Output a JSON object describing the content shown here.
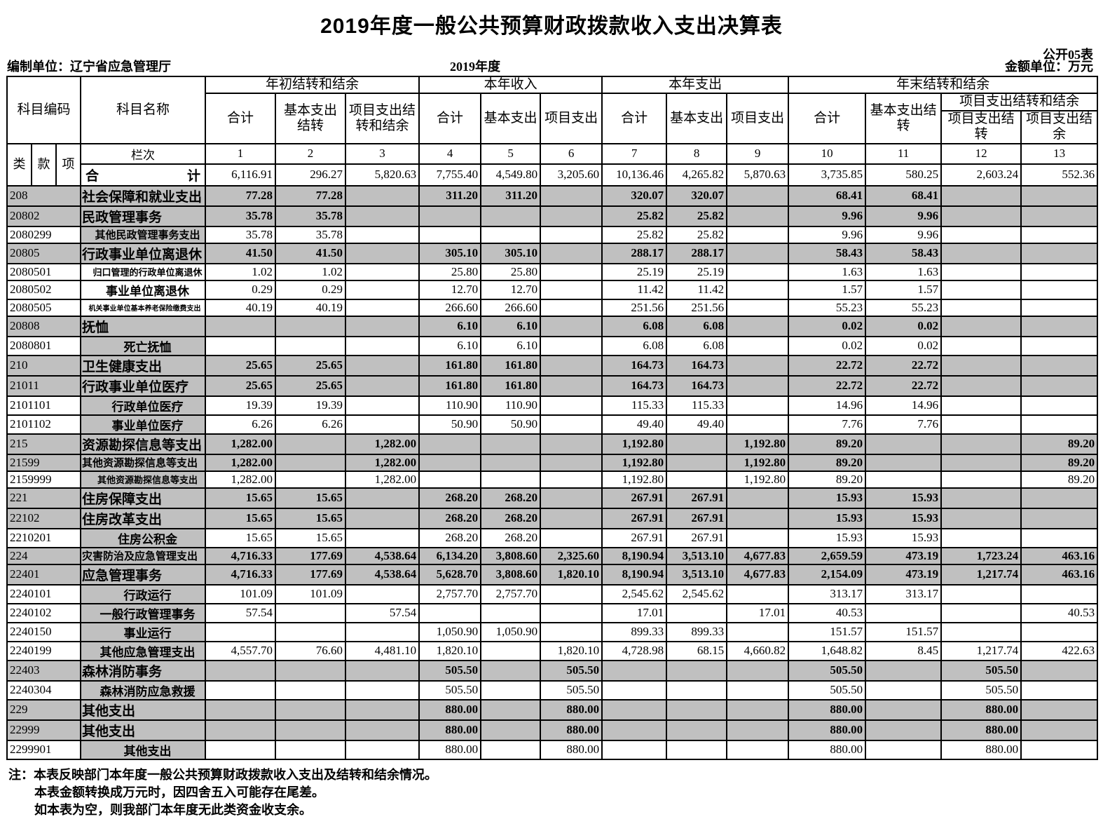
{
  "title": "2019年度一般公共预算财政拨款收入支出决算表",
  "meta": {
    "table_code": "公开05表",
    "prepared_by": "编制单位：辽宁省应急管理厅",
    "period": "2019年度",
    "unit": "金额单位：万元"
  },
  "header": {
    "subject_code": "科目编码",
    "subject_name": "科目名称",
    "groups": [
      {
        "label": "年初结转和结余",
        "cols": [
          "合计",
          "基本支出结转",
          "项目支出结转和结余"
        ]
      },
      {
        "label": "本年收入",
        "cols": [
          "合计",
          "基本支出",
          "项目支出"
        ]
      },
      {
        "label": "本年支出",
        "cols": [
          "合计",
          "基本支出",
          "项目支出"
        ]
      },
      {
        "label": "年末结转和结余",
        "cols": [
          "合计",
          "基本支出结转"
        ],
        "subgroup": {
          "label": "项目支出结转和结余",
          "cols": [
            "项目支出结转",
            "项目支出结余"
          ]
        }
      }
    ],
    "class_label": "类",
    "section_label": "款",
    "item_label": "项",
    "rank_label": "栏次",
    "col_numbers": [
      "1",
      "2",
      "3",
      "4",
      "5",
      "6",
      "7",
      "8",
      "9",
      "10",
      "11",
      "12",
      "13"
    ]
  },
  "total_row": {
    "name_parts": [
      "合",
      "计"
    ],
    "values": [
      "6,116.91",
      "296.27",
      "5,820.63",
      "7,755.40",
      "4,549.80",
      "3,205.60",
      "10,136.46",
      "4,265.82",
      "5,870.63",
      "3,735.85",
      "580.25",
      "2,603.24",
      "552.36"
    ]
  },
  "rows": [
    {
      "code": "208",
      "name": "社会保障和就业支出",
      "lv": 1,
      "v": [
        "77.28",
        "77.28",
        "",
        "311.20",
        "311.20",
        "",
        "320.07",
        "320.07",
        "",
        "68.41",
        "68.41",
        "",
        ""
      ]
    },
    {
      "code": "20802",
      "name": "民政管理事务",
      "lv": 2,
      "v": [
        "35.78",
        "35.78",
        "",
        "",
        "",
        "",
        "25.82",
        "25.82",
        "",
        "9.96",
        "9.96",
        "",
        ""
      ]
    },
    {
      "code": "2080299",
      "name": "其他民政管理事务支出",
      "lv": 3,
      "cls": "s",
      "v": [
        "35.78",
        "35.78",
        "",
        "",
        "",
        "",
        "25.82",
        "25.82",
        "",
        "9.96",
        "9.96",
        "",
        ""
      ]
    },
    {
      "code": "20805",
      "name": "行政事业单位离退休",
      "lv": 2,
      "v": [
        "41.50",
        "41.50",
        "",
        "305.10",
        "305.10",
        "",
        "288.17",
        "288.17",
        "",
        "58.43",
        "58.43",
        "",
        ""
      ]
    },
    {
      "code": "2080501",
      "name": "归口管理的行政单位离退休",
      "lv": 3,
      "cls": "xs",
      "wn": true,
      "v": [
        "1.02",
        "1.02",
        "",
        "25.80",
        "25.80",
        "",
        "25.19",
        "25.19",
        "",
        "1.63",
        "1.63",
        "",
        ""
      ]
    },
    {
      "code": "2080502",
      "name": "事业单位离退休",
      "lv": 3,
      "wn": true,
      "v": [
        "0.29",
        "0.29",
        "",
        "12.70",
        "12.70",
        "",
        "11.42",
        "11.42",
        "",
        "1.57",
        "1.57",
        "",
        ""
      ]
    },
    {
      "code": "2080505",
      "name": "机关事业单位基本养老保险缴费支出",
      "lv": 3,
      "cls": "xxs",
      "wn": true,
      "v": [
        "40.19",
        "40.19",
        "",
        "266.60",
        "266.60",
        "",
        "251.56",
        "251.56",
        "",
        "55.23",
        "55.23",
        "",
        ""
      ]
    },
    {
      "code": "20808",
      "name": "抚恤",
      "lv": 2,
      "v": [
        "",
        "",
        "",
        "6.10",
        "6.10",
        "",
        "6.08",
        "6.08",
        "",
        "0.02",
        "0.02",
        "",
        ""
      ]
    },
    {
      "code": "2080801",
      "name": "死亡抚恤",
      "lv": 3,
      "v": [
        "",
        "",
        "",
        "6.10",
        "6.10",
        "",
        "6.08",
        "6.08",
        "",
        "0.02",
        "0.02",
        "",
        ""
      ]
    },
    {
      "code": "210",
      "name": "卫生健康支出",
      "lv": 1,
      "v": [
        "25.65",
        "25.65",
        "",
        "161.80",
        "161.80",
        "",
        "164.73",
        "164.73",
        "",
        "22.72",
        "22.72",
        "",
        ""
      ]
    },
    {
      "code": "21011",
      "name": "行政事业单位医疗",
      "lv": 2,
      "v": [
        "25.65",
        "25.65",
        "",
        "161.80",
        "161.80",
        "",
        "164.73",
        "164.73",
        "",
        "22.72",
        "22.72",
        "",
        ""
      ]
    },
    {
      "code": "2101101",
      "name": "行政单位医疗",
      "lv": 3,
      "v": [
        "19.39",
        "19.39",
        "",
        "110.90",
        "110.90",
        "",
        "115.33",
        "115.33",
        "",
        "14.96",
        "14.96",
        "",
        ""
      ]
    },
    {
      "code": "2101102",
      "name": "事业单位医疗",
      "lv": 3,
      "v": [
        "6.26",
        "6.26",
        "",
        "50.90",
        "50.90",
        "",
        "49.40",
        "49.40",
        "",
        "7.76",
        "7.76",
        "",
        ""
      ]
    },
    {
      "code": "215",
      "name": "资源勘探信息等支出",
      "lv": 1,
      "v": [
        "1,282.00",
        "",
        "1,282.00",
        "",
        "",
        "",
        "1,192.80",
        "",
        "1,192.80",
        "89.20",
        "",
        "",
        "89.20"
      ]
    },
    {
      "code": "21599",
      "name": "其他资源勘探信息等支出",
      "lv": 2,
      "cls": "s",
      "v": [
        "1,282.00",
        "",
        "1,282.00",
        "",
        "",
        "",
        "1,192.80",
        "",
        "1,192.80",
        "89.20",
        "",
        "",
        "89.20"
      ]
    },
    {
      "code": "2159999",
      "name": "其他资源勘探信息等支出",
      "lv": 3,
      "cls": "xs",
      "v": [
        "1,282.00",
        "",
        "1,282.00",
        "",
        "",
        "",
        "1,192.80",
        "",
        "1,192.80",
        "89.20",
        "",
        "",
        "89.20"
      ]
    },
    {
      "code": "221",
      "name": "住房保障支出",
      "lv": 1,
      "v": [
        "15.65",
        "15.65",
        "",
        "268.20",
        "268.20",
        "",
        "267.91",
        "267.91",
        "",
        "15.93",
        "15.93",
        "",
        ""
      ]
    },
    {
      "code": "22102",
      "name": "住房改革支出",
      "lv": 2,
      "v": [
        "15.65",
        "15.65",
        "",
        "268.20",
        "268.20",
        "",
        "267.91",
        "267.91",
        "",
        "15.93",
        "15.93",
        "",
        ""
      ]
    },
    {
      "code": "2210201",
      "name": "住房公积金",
      "lv": 3,
      "v": [
        "15.65",
        "15.65",
        "",
        "268.20",
        "268.20",
        "",
        "267.91",
        "267.91",
        "",
        "15.93",
        "15.93",
        "",
        ""
      ]
    },
    {
      "code": "224",
      "name": "灾害防治及应急管理支出",
      "lv": 1,
      "cls": "s",
      "v": [
        "4,716.33",
        "177.69",
        "4,538.64",
        "6,134.20",
        "3,808.60",
        "2,325.60",
        "8,190.94",
        "3,513.10",
        "4,677.83",
        "2,659.59",
        "473.19",
        "1,723.24",
        "463.16"
      ]
    },
    {
      "code": "22401",
      "name": "应急管理事务",
      "lv": 2,
      "v": [
        "4,716.33",
        "177.69",
        "4,538.64",
        "5,628.70",
        "3,808.60",
        "1,820.10",
        "8,190.94",
        "3,513.10",
        "4,677.83",
        "2,154.09",
        "473.19",
        "1,217.74",
        "463.16"
      ]
    },
    {
      "code": "2240101",
      "name": "行政运行",
      "lv": 3,
      "v": [
        "101.09",
        "101.09",
        "",
        "2,757.70",
        "2,757.70",
        "",
        "2,545.62",
        "2,545.62",
        "",
        "313.17",
        "313.17",
        "",
        ""
      ]
    },
    {
      "code": "2240102",
      "name": "一般行政管理事务",
      "lv": 3,
      "v": [
        "57.54",
        "",
        "57.54",
        "",
        "",
        "",
        "17.01",
        "",
        "17.01",
        "40.53",
        "",
        "",
        "40.53"
      ]
    },
    {
      "code": "2240150",
      "name": "事业运行",
      "lv": 3,
      "v": [
        "",
        "",
        "",
        "1,050.90",
        "1,050.90",
        "",
        "899.33",
        "899.33",
        "",
        "151.57",
        "151.57",
        "",
        ""
      ]
    },
    {
      "code": "2240199",
      "name": "其他应急管理支出",
      "lv": 3,
      "v": [
        "4,557.70",
        "76.60",
        "4,481.10",
        "1,820.10",
        "",
        "1,820.10",
        "4,728.98",
        "68.15",
        "4,660.82",
        "1,648.82",
        "8.45",
        "1,217.74",
        "422.63"
      ]
    },
    {
      "code": "22403",
      "name": "森林消防事务",
      "lv": 2,
      "v": [
        "",
        "",
        "",
        "505.50",
        "",
        "505.50",
        "",
        "",
        "",
        "505.50",
        "",
        "505.50",
        ""
      ]
    },
    {
      "code": "2240304",
      "name": "森林消防应急救援",
      "lv": 3,
      "v": [
        "",
        "",
        "",
        "505.50",
        "",
        "505.50",
        "",
        "",
        "",
        "505.50",
        "",
        "505.50",
        ""
      ]
    },
    {
      "code": "229",
      "name": "其他支出",
      "lv": 1,
      "v": [
        "",
        "",
        "",
        "880.00",
        "",
        "880.00",
        "",
        "",
        "",
        "880.00",
        "",
        "880.00",
        ""
      ]
    },
    {
      "code": "22999",
      "name": "其他支出",
      "lv": 2,
      "v": [
        "",
        "",
        "",
        "880.00",
        "",
        "880.00",
        "",
        "",
        "",
        "880.00",
        "",
        "880.00",
        ""
      ]
    },
    {
      "code": "2299901",
      "name": "其他支出",
      "lv": 3,
      "v": [
        "",
        "",
        "",
        "880.00",
        "",
        "880.00",
        "",
        "",
        "",
        "880.00",
        "",
        "880.00",
        ""
      ]
    }
  ],
  "notes": [
    "注：本表反映部门本年度一般公共预算财政拨款收入支出及结转和结余情况。",
    "本表金额转换成万元时，因四舍五入可能存在尾差。",
    "如本表为空，则我部门本年度无此类资金收支余。"
  ],
  "colors": {
    "row_shade": "#c0c0c0",
    "border": "#000000"
  }
}
